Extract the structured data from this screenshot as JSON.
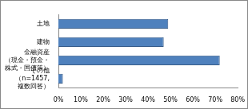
{
  "chart_data": {
    "type": "bar",
    "orientation": "horizontal",
    "categories": [
      "土地",
      "建物",
      "金融資産\n（現金・預金・\n株式・国債等）",
      "その他\n（n=1457,\n複数回答）"
    ],
    "values": [
      49,
      47,
      72,
      2
    ],
    "color": "#4f81bd",
    "xlim": [
      0,
      80
    ],
    "xticks": [
      {
        "value": 0,
        "label": "0%"
      },
      {
        "value": 10,
        "label": "10%"
      },
      {
        "value": 20,
        "label": "20%"
      },
      {
        "value": 30,
        "label": "30%"
      },
      {
        "value": 40,
        "label": "40%"
      },
      {
        "value": 50,
        "label": "50%"
      },
      {
        "value": 60,
        "label": "60%"
      },
      {
        "value": 70,
        "label": "70%"
      },
      {
        "value": 80,
        "label": "80%"
      }
    ],
    "grid": false
  }
}
